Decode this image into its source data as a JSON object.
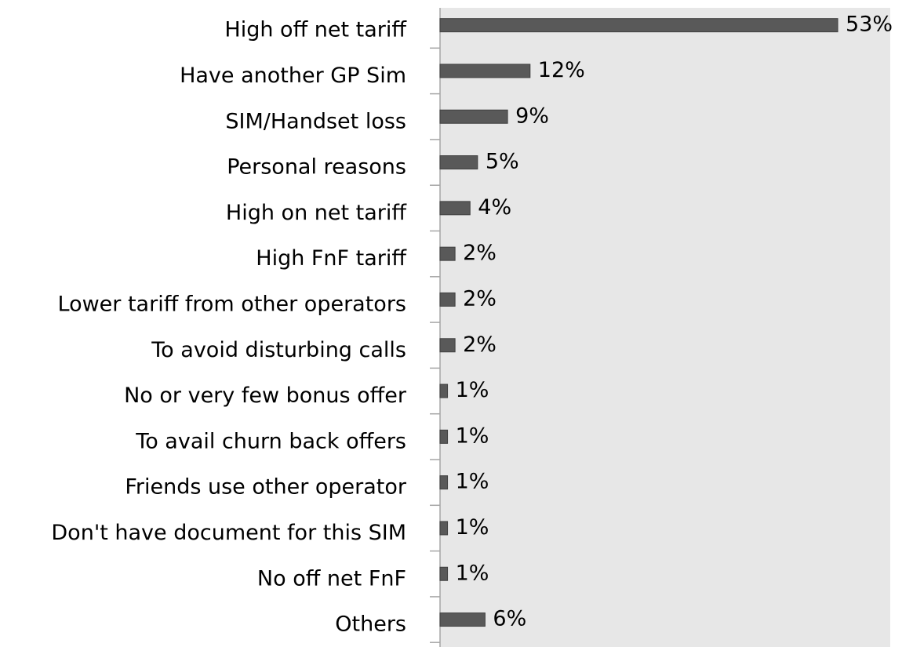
{
  "chart_data": {
    "type": "bar",
    "orientation": "horizontal",
    "categories": [
      "High off net tariff",
      "Have another GP Sim",
      "SIM/Handset loss",
      "Personal reasons",
      "High on net tariff",
      "High FnF tariff",
      "Lower tariff from other operators",
      "To avoid disturbing calls",
      "No or very few bonus offer",
      "To avail churn back offers",
      "Friends use other operator",
      "Don't have document for this SIM",
      "No off net FnF",
      "Others"
    ],
    "values": [
      53,
      12,
      9,
      5,
      4,
      2,
      2,
      2,
      1,
      1,
      1,
      1,
      1,
      6
    ],
    "value_labels": [
      "53%",
      "12%",
      "9%",
      "5%",
      "4%",
      "2%",
      "2%",
      "2%",
      "1%",
      "1%",
      "1%",
      "1%",
      "1%",
      "6%"
    ],
    "color": "#595959",
    "xlim": [
      0,
      60
    ]
  }
}
